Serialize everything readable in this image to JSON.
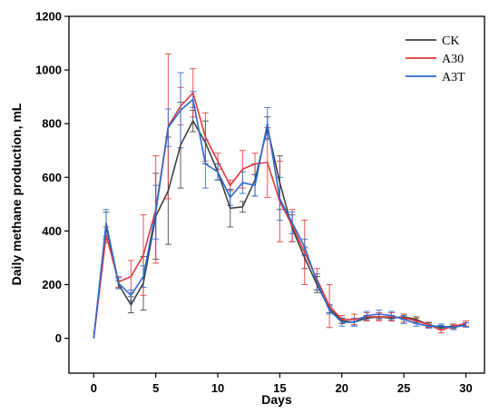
{
  "chart_data": {
    "type": "line",
    "xlabel": "Days",
    "ylabel": "Daily methane production, mL",
    "xlim": [
      -2,
      31.5
    ],
    "ylim": [
      -130,
      1200
    ],
    "xticks": [
      0,
      5,
      10,
      15,
      20,
      25,
      30
    ],
    "yticks": [
      0,
      200,
      400,
      600,
      800,
      1000,
      1200
    ],
    "x": [
      0,
      1,
      2,
      3,
      4,
      5,
      6,
      7,
      8,
      9,
      10,
      11,
      12,
      13,
      14,
      15,
      16,
      17,
      18,
      19,
      20,
      21,
      22,
      23,
      24,
      25,
      26,
      27,
      28,
      29,
      30
    ],
    "grid": false,
    "legend_position": "top-right",
    "series": [
      {
        "name": "CK",
        "color": "#404040",
        "values": [
          0,
          420,
          200,
          125,
          205,
          455,
          550,
          720,
          810,
          730,
          620,
          485,
          490,
          590,
          785,
          580,
          410,
          300,
          200,
          110,
          65,
          60,
          75,
          80,
          75,
          80,
          70,
          50,
          40,
          45,
          50
        ],
        "errors": [
          0,
          50,
          15,
          30,
          100,
          160,
          200,
          160,
          40,
          80,
          30,
          70,
          20,
          60,
          40,
          100,
          50,
          40,
          30,
          15,
          10,
          10,
          10,
          10,
          10,
          10,
          10,
          8,
          8,
          8,
          8
        ]
      },
      {
        "name": "A30",
        "color": "#e03a3a",
        "values": [
          0,
          385,
          210,
          230,
          310,
          480,
          790,
          865,
          915,
          750,
          660,
          570,
          630,
          650,
          655,
          510,
          420,
          320,
          220,
          120,
          70,
          70,
          80,
          80,
          80,
          75,
          65,
          50,
          30,
          45,
          55
        ],
        "errors": [
          0,
          30,
          20,
          60,
          150,
          200,
          270,
          70,
          90,
          90,
          30,
          20,
          70,
          40,
          130,
          150,
          60,
          120,
          40,
          80,
          15,
          20,
          15,
          15,
          15,
          15,
          10,
          10,
          10,
          8,
          10
        ]
      },
      {
        "name": "A3T",
        "color": "#2b6ad1",
        "values": [
          0,
          430,
          205,
          160,
          230,
          470,
          785,
          850,
          890,
          650,
          620,
          525,
          580,
          570,
          800,
          520,
          430,
          340,
          210,
          105,
          60,
          60,
          85,
          90,
          85,
          70,
          55,
          45,
          45,
          40,
          50
        ],
        "errors": [
          0,
          50,
          20,
          20,
          40,
          100,
          70,
          140,
          30,
          90,
          30,
          30,
          40,
          40,
          60,
          80,
          40,
          30,
          30,
          15,
          15,
          15,
          15,
          15,
          15,
          15,
          10,
          8,
          8,
          8,
          8
        ]
      }
    ]
  }
}
